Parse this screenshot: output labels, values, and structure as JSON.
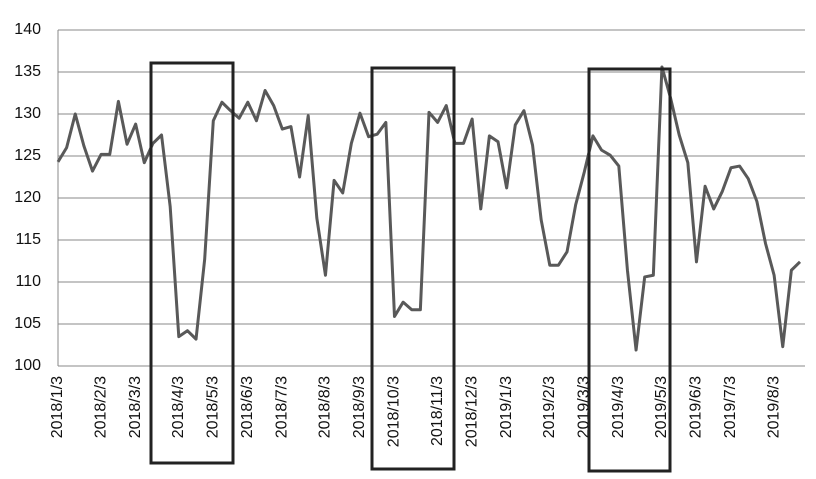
{
  "chart_data": {
    "type": "line",
    "categories": [
      "2018/1/3",
      null,
      null,
      null,
      null,
      "2018/2/3",
      null,
      null,
      null,
      "2018/3/3",
      null,
      null,
      null,
      null,
      "2018/4/3",
      null,
      null,
      null,
      "2018/5/3",
      null,
      null,
      null,
      "2018/6/3",
      null,
      null,
      null,
      "2018/7/3",
      null,
      null,
      null,
      null,
      "2018/8/3",
      null,
      null,
      null,
      "2018/9/3",
      null,
      null,
      null,
      "2018/10/3",
      null,
      null,
      null,
      null,
      "2018/11/3",
      null,
      null,
      null,
      "2018/12/3",
      null,
      null,
      null,
      "2019/1/3",
      null,
      null,
      null,
      null,
      "2019/2/3",
      null,
      null,
      null,
      "2019/3/3",
      null,
      null,
      null,
      "2019/4/3",
      null,
      null,
      null,
      null,
      "2019/5/3",
      null,
      null,
      null,
      "2019/6/3",
      null,
      null,
      null,
      "2019/7/3",
      null,
      null,
      null,
      null,
      "2019/8/3",
      null,
      null,
      null
    ],
    "values": [
      124.3,
      126,
      130,
      126.2,
      123.2,
      125.2,
      125.2,
      131.5,
      126.4,
      128.8,
      124.2,
      126.5,
      127.5,
      119,
      103.5,
      104.2,
      103.2,
      112.7,
      129.2,
      131.4,
      130.4,
      129.5,
      131.4,
      129.2,
      132.8,
      131,
      128.2,
      128.5,
      122.5,
      129.8,
      117.6,
      110.8,
      122.1,
      120.6,
      126.5,
      130.1,
      127.3,
      127.6,
      129,
      105.9,
      107.6,
      106.7,
      106.7,
      130.2,
      129,
      131,
      126.5,
      126.5,
      129.4,
      118.7,
      127.4,
      126.7,
      121.2,
      128.7,
      130.4,
      126.3,
      117.4,
      112,
      112,
      113.6,
      119.2,
      123.1,
      127.4,
      125.7,
      125.1,
      123.8,
      111.4,
      101.9,
      110.6,
      110.8,
      135.6,
      131.9,
      127.5,
      124.2,
      112.4,
      121.4,
      118.7,
      120.8,
      123.6,
      123.8,
      122.3,
      119.6,
      114.6,
      110.8,
      102.3,
      111.4,
      112.4
    ],
    "color": "#595959",
    "ylim": [
      100,
      140
    ],
    "yticks": [
      100,
      105,
      110,
      115,
      120,
      125,
      130,
      135,
      140
    ],
    "grid": true
  }
}
